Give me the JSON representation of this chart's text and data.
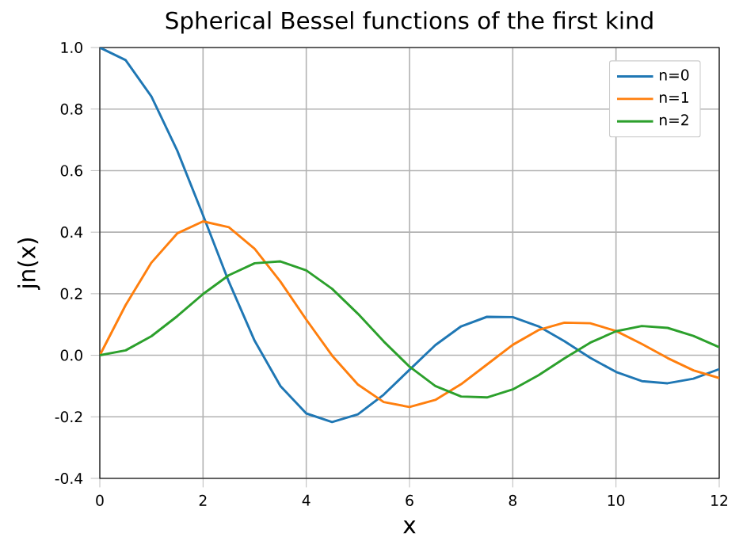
{
  "chart_data": {
    "type": "line",
    "title": "Spherical Bessel functions of the first kind",
    "xlabel": "x",
    "ylabel": "jn(x)",
    "x": [
      0,
      0.5,
      1,
      1.5,
      2,
      2.5,
      3,
      3.5,
      4,
      4.5,
      5,
      5.5,
      6,
      6.5,
      7,
      7.5,
      8,
      8.5,
      9,
      9.5,
      10,
      10.5,
      11,
      11.5,
      12
    ],
    "series": [
      {
        "name": "n=0",
        "color": "#1f77b4",
        "values": [
          1,
          0.959,
          0.841,
          0.665,
          0.455,
          0.239,
          0.047,
          -0.1,
          -0.189,
          -0.217,
          -0.192,
          -0.128,
          -0.047,
          0.033,
          0.094,
          0.125,
          0.124,
          0.094,
          0.046,
          -0.008,
          -0.054,
          -0.084,
          -0.091,
          -0.076,
          -0.045
        ]
      },
      {
        "name": "n=1",
        "color": "#ff7f0e",
        "values": [
          0,
          0.163,
          0.301,
          0.396,
          0.435,
          0.416,
          0.346,
          0.239,
          0.116,
          -0.001,
          -0.095,
          -0.152,
          -0.168,
          -0.145,
          -0.094,
          -0.03,
          0.034,
          0.082,
          0.106,
          0.104,
          0.079,
          0.037,
          -0.009,
          -0.049,
          -0.074
        ]
      },
      {
        "name": "n=2",
        "color": "#2ca02c",
        "values": [
          0,
          0.016,
          0.062,
          0.127,
          0.199,
          0.26,
          0.299,
          0.305,
          0.276,
          0.216,
          0.135,
          0.045,
          -0.037,
          -0.1,
          -0.134,
          -0.137,
          -0.111,
          -0.065,
          -0.01,
          0.041,
          0.078,
          0.095,
          0.089,
          0.063,
          0.026
        ]
      }
    ],
    "xlim": [
      0,
      12
    ],
    "xticks": [
      0,
      2,
      4,
      6,
      8,
      10,
      12
    ],
    "ylim": [
      -0.4,
      1.0
    ],
    "yticks": [
      -0.4,
      -0.2,
      {
        "value": 0,
        "label": "0.0"
      },
      0.2,
      0.4,
      0.6,
      0.8,
      {
        "value": 1,
        "label": "1.0"
      }
    ],
    "grid": true,
    "legend": "top right"
  }
}
